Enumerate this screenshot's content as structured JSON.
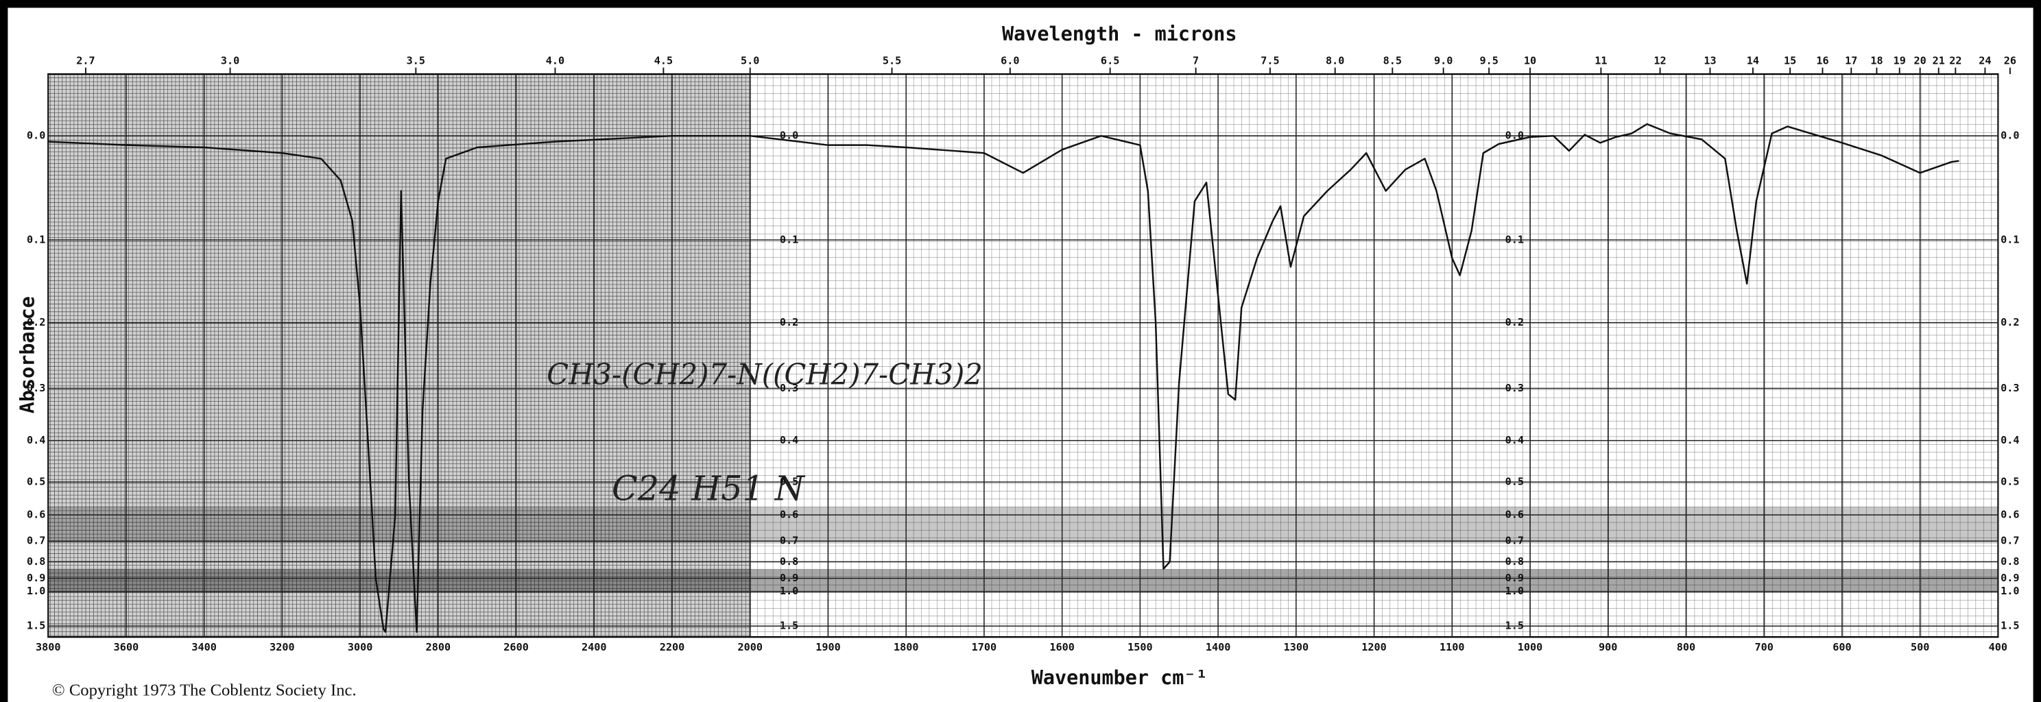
{
  "chart_data": {
    "type": "line",
    "title": "Wavelength - microns",
    "x_label": "Wavenumber cm⁻¹",
    "y_label": "Absorbance",
    "color": "#111111",
    "yscale": "absorbance",
    "grid": true,
    "x": [
      3800,
      3600,
      3400,
      3200,
      3100,
      3050,
      3020,
      3000,
      2980,
      2960,
      2940,
      2935,
      2910,
      2895,
      2875,
      2855,
      2840,
      2820,
      2800,
      2780,
      2700,
      2500,
      2200,
      2000,
      1900,
      1850,
      1800,
      1700,
      1650,
      1600,
      1550,
      1500,
      1490,
      1480,
      1470,
      1462,
      1450,
      1430,
      1415,
      1387,
      1378,
      1370,
      1350,
      1330,
      1320,
      1307,
      1290,
      1260,
      1230,
      1210,
      1185,
      1160,
      1135,
      1120,
      1100,
      1090,
      1075,
      1060,
      1040,
      1000,
      970,
      950,
      930,
      910,
      890,
      870,
      850,
      820,
      780,
      750,
      735,
      722,
      710,
      690,
      670,
      650,
      600,
      550,
      500,
      460,
      450
    ],
    "values": [
      0.005,
      0.008,
      0.01,
      0.015,
      0.02,
      0.04,
      0.08,
      0.18,
      0.4,
      0.9,
      1.6,
      1.7,
      0.6,
      0.05,
      0.5,
      1.7,
      0.34,
      0.15,
      0.06,
      0.02,
      0.01,
      0.005,
      0.0,
      0.0,
      0.008,
      0.008,
      0.01,
      0.015,
      0.033,
      0.012,
      0.0,
      0.008,
      0.05,
      0.2,
      0.84,
      0.8,
      0.29,
      0.06,
      0.042,
      0.31,
      0.32,
      0.18,
      0.12,
      0.08,
      0.065,
      0.13,
      0.075,
      0.05,
      0.03,
      0.015,
      0.05,
      0.03,
      0.02,
      0.05,
      0.12,
      0.14,
      0.09,
      0.015,
      0.007,
      0.001,
      0.0,
      0.013,
      -0.001,
      0.006,
      0.001,
      -0.002,
      -0.01,
      -0.002,
      0.003,
      0.02,
      0.09,
      0.15,
      0.06,
      -0.002,
      -0.008,
      -0.004,
      0.006,
      0.017,
      0.033,
      0.023,
      0.022
    ],
    "xticks": [
      3800,
      3600,
      3400,
      3200,
      3000,
      2800,
      2600,
      2400,
      2200,
      2000,
      1900,
      1800,
      1700,
      1600,
      1500,
      1400,
      1300,
      1200,
      1100,
      1000,
      900,
      800,
      700,
      600,
      500,
      400
    ],
    "ylim": [
      2,
      -0.05
    ],
    "yticks": [
      {
        "value": 0,
        "label": "0.0"
      },
      0.1,
      0.2,
      0.3,
      0.4,
      0.5,
      0.6,
      0.7,
      0.8,
      0.9,
      {
        "value": 1,
        "label": "1.0"
      },
      1.5
    ],
    "x2ticks": [
      2.7,
      {
        "value": 3,
        "label": "3.0"
      },
      3.5,
      {
        "value": 4,
        "label": "4.0"
      },
      4.5,
      {
        "value": 5,
        "label": "5.0"
      },
      5.5,
      {
        "value": 6,
        "label": "6.0"
      },
      6.5,
      7,
      7.5,
      {
        "value": 8,
        "label": "8.0"
      },
      8.5,
      {
        "value": 9,
        "label": "9.0"
      },
      9.5,
      10,
      11,
      12,
      13,
      14,
      15,
      16,
      17,
      18,
      19,
      20,
      21,
      22,
      24,
      26
    ],
    "annotations": [
      "CH3-(CH2)7-N((CH2)7-CH3)2",
      "C24 H51 N"
    ],
    "copyright": "© Copyright 1973  The Coblentz Society  Inc."
  }
}
